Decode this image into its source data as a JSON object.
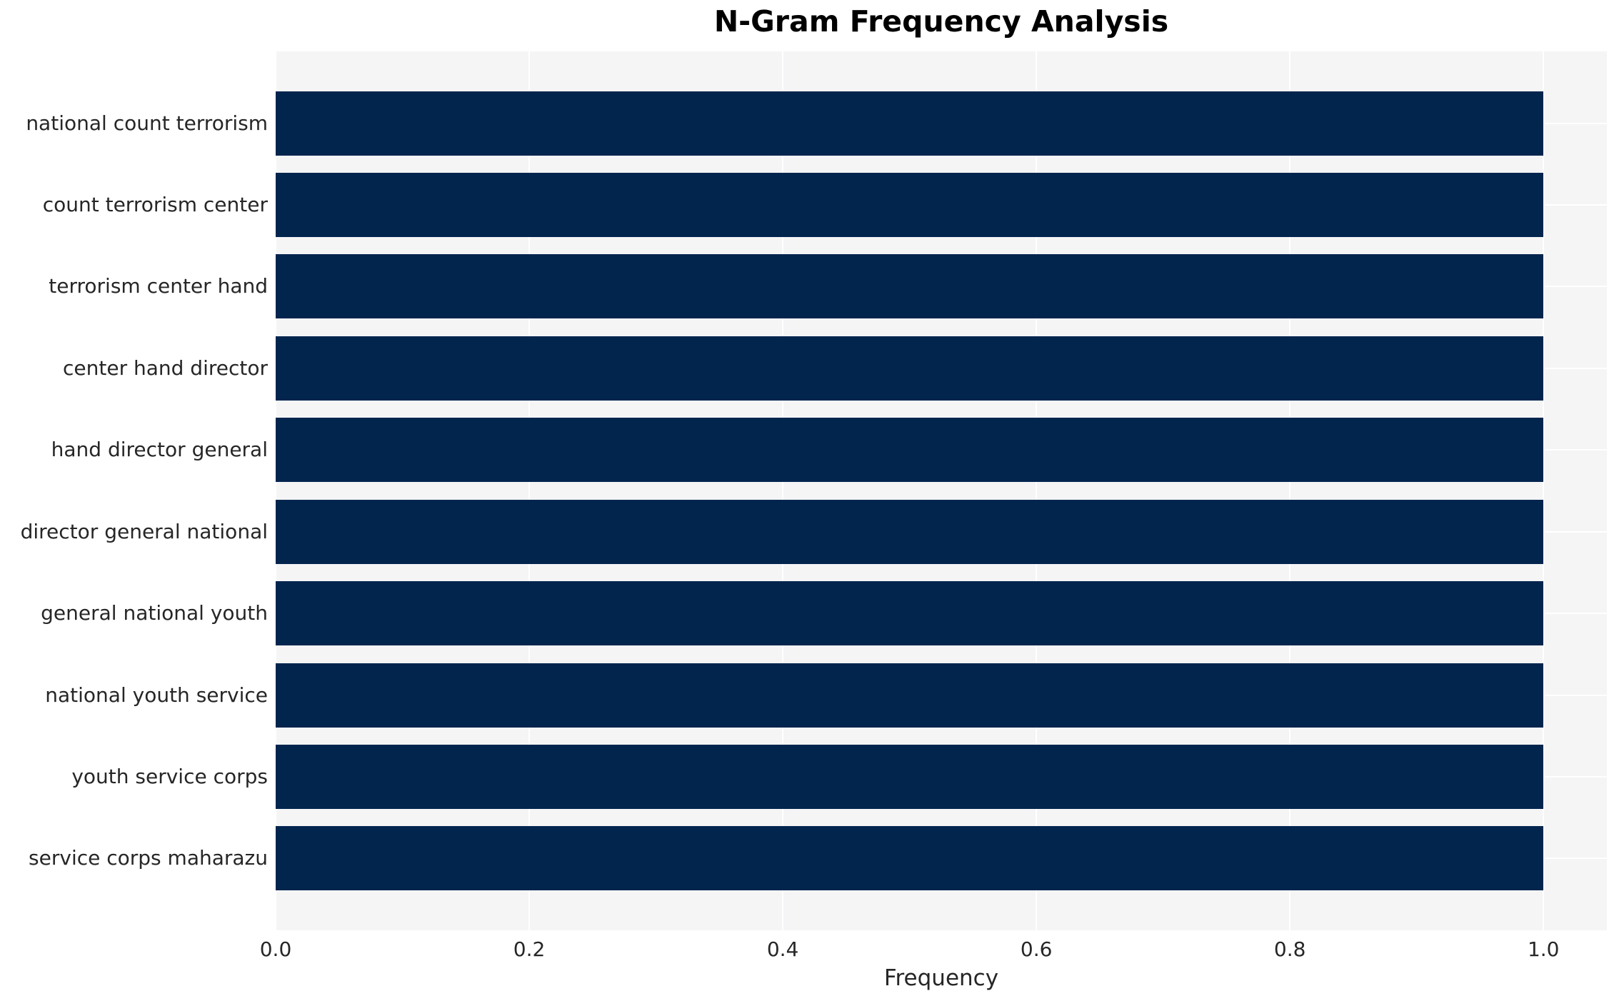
{
  "chart_data": {
    "type": "bar",
    "orientation": "horizontal",
    "title": "N-Gram Frequency Analysis",
    "xlabel": "Frequency",
    "ylabel": "",
    "categories": [
      "national count terrorism",
      "count terrorism center",
      "terrorism center hand",
      "center hand director",
      "hand director general",
      "director general national",
      "general national youth",
      "national youth service",
      "youth service corps",
      "service corps maharazu"
    ],
    "values": [
      1.0,
      1.0,
      1.0,
      1.0,
      1.0,
      1.0,
      1.0,
      1.0,
      1.0,
      1.0
    ],
    "xticks": [
      {
        "value": 0.0,
        "label": "0.0"
      },
      {
        "value": 0.2,
        "label": "0.2"
      },
      {
        "value": 0.4,
        "label": "0.4"
      },
      {
        "value": 0.6,
        "label": "0.6"
      },
      {
        "value": 0.8,
        "label": "0.8"
      },
      {
        "value": 1.0,
        "label": "1.0"
      }
    ],
    "xlim": [
      0,
      1.05
    ],
    "grid": true,
    "legend": false,
    "colors": {
      "bar": "#02254e",
      "plot_bg": "#f5f5f6",
      "grid_line": "#ffffff",
      "figure_bg": "#ffffff",
      "title_text": "#000000",
      "label_text": "#262626"
    }
  }
}
